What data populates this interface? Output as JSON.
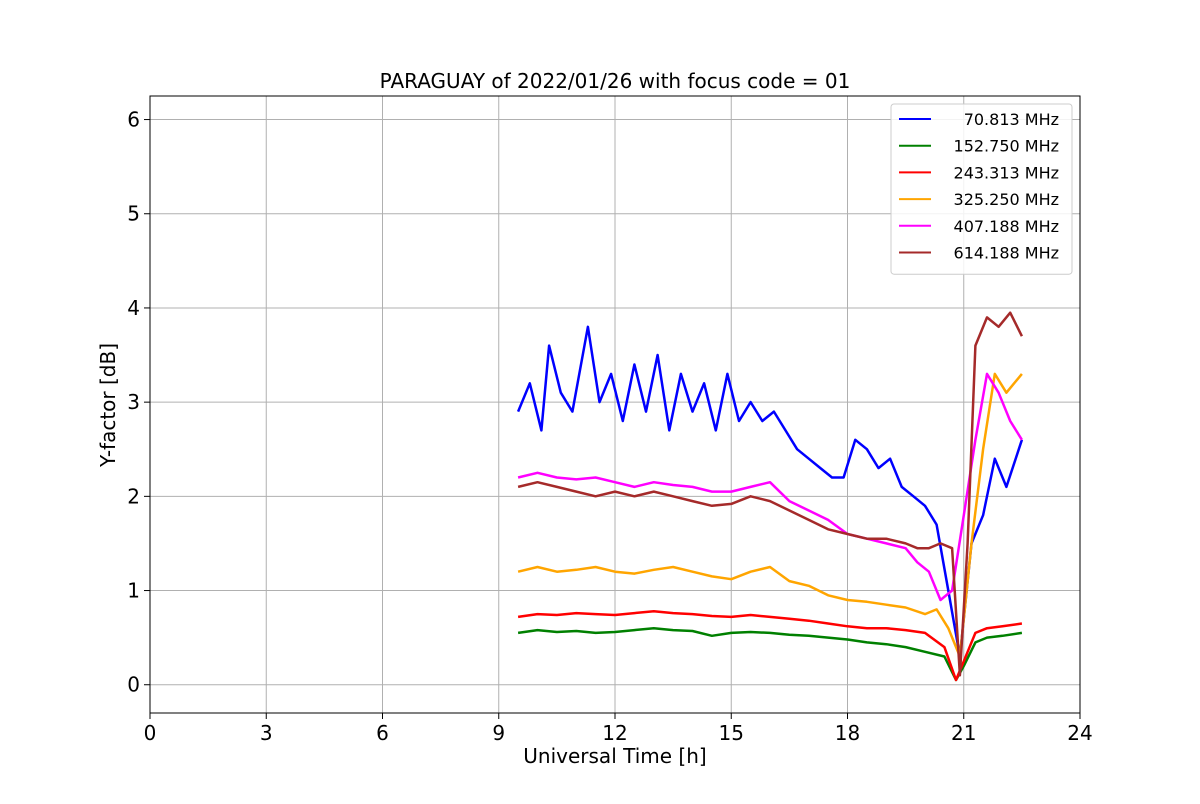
{
  "chart_data": {
    "type": "line",
    "title": "PARAGUAY of 2022/01/26 with focus code = 01",
    "xlabel": "Universal Time [h]",
    "ylabel": "Y-factor [dB]",
    "xlim": [
      0,
      24
    ],
    "ylim": [
      -0.3,
      6.25
    ],
    "xticks": [
      0,
      3,
      6,
      9,
      12,
      15,
      18,
      21,
      24
    ],
    "yticks": [
      0,
      1,
      2,
      3,
      4,
      5,
      6
    ],
    "grid": true,
    "legend_position": "top-right",
    "series": [
      {
        "name": "70.813 MHz",
        "color": "#0000ff",
        "x": [
          9.5,
          9.8,
          10.1,
          10.3,
          10.6,
          10.9,
          11.3,
          11.6,
          11.9,
          12.2,
          12.5,
          12.8,
          13.1,
          13.4,
          13.7,
          14.0,
          14.3,
          14.6,
          14.9,
          15.2,
          15.5,
          15.8,
          16.1,
          16.4,
          16.7,
          17.0,
          17.3,
          17.6,
          17.9,
          18.2,
          18.5,
          18.8,
          19.1,
          19.4,
          19.7,
          20.0,
          20.3,
          20.6,
          20.9,
          21.2,
          21.5,
          21.8,
          22.1,
          22.5
        ],
        "values": [
          2.9,
          3.2,
          2.7,
          3.6,
          3.1,
          2.9,
          3.8,
          3.0,
          3.3,
          2.8,
          3.4,
          2.9,
          3.5,
          2.7,
          3.3,
          2.9,
          3.2,
          2.7,
          3.3,
          2.8,
          3.0,
          2.8,
          2.9,
          2.7,
          2.5,
          2.4,
          2.3,
          2.2,
          2.2,
          2.6,
          2.5,
          2.3,
          2.4,
          2.1,
          2.0,
          1.9,
          1.7,
          1.0,
          0.3,
          1.5,
          1.8,
          2.4,
          2.1,
          2.6
        ]
      },
      {
        "name": "152.750 MHz",
        "color": "#008000",
        "x": [
          9.5,
          10.0,
          10.5,
          11.0,
          11.5,
          12.0,
          12.5,
          13.0,
          13.5,
          14.0,
          14.5,
          15.0,
          15.5,
          16.0,
          16.5,
          17.0,
          17.5,
          18.0,
          18.5,
          19.0,
          19.5,
          20.0,
          20.5,
          20.8,
          21.0,
          21.3,
          21.6,
          22.0,
          22.5
        ],
        "values": [
          0.55,
          0.58,
          0.56,
          0.57,
          0.55,
          0.56,
          0.58,
          0.6,
          0.58,
          0.57,
          0.52,
          0.55,
          0.56,
          0.55,
          0.53,
          0.52,
          0.5,
          0.48,
          0.45,
          0.43,
          0.4,
          0.35,
          0.3,
          0.05,
          0.2,
          0.45,
          0.5,
          0.52,
          0.55
        ]
      },
      {
        "name": "243.313 MHz",
        "color": "#ff0000",
        "x": [
          9.5,
          10.0,
          10.5,
          11.0,
          11.5,
          12.0,
          12.5,
          13.0,
          13.5,
          14.0,
          14.5,
          15.0,
          15.5,
          16.0,
          16.5,
          17.0,
          17.5,
          18.0,
          18.5,
          19.0,
          19.5,
          20.0,
          20.5,
          20.8,
          21.0,
          21.3,
          21.6,
          22.0,
          22.5
        ],
        "values": [
          0.72,
          0.75,
          0.74,
          0.76,
          0.75,
          0.74,
          0.76,
          0.78,
          0.76,
          0.75,
          0.73,
          0.72,
          0.74,
          0.72,
          0.7,
          0.68,
          0.65,
          0.62,
          0.6,
          0.6,
          0.58,
          0.55,
          0.4,
          0.05,
          0.25,
          0.55,
          0.6,
          0.62,
          0.65
        ]
      },
      {
        "name": "325.250 MHz",
        "color": "#ffa500",
        "x": [
          9.5,
          10.0,
          10.5,
          11.0,
          11.5,
          12.0,
          12.5,
          13.0,
          13.5,
          14.0,
          14.5,
          15.0,
          15.5,
          16.0,
          16.5,
          17.0,
          17.5,
          18.0,
          18.5,
          19.0,
          19.5,
          20.0,
          20.3,
          20.6,
          20.9,
          21.2,
          21.5,
          21.8,
          22.1,
          22.5
        ],
        "values": [
          1.2,
          1.25,
          1.2,
          1.22,
          1.25,
          1.2,
          1.18,
          1.22,
          1.25,
          1.2,
          1.15,
          1.12,
          1.2,
          1.25,
          1.1,
          1.05,
          0.95,
          0.9,
          0.88,
          0.85,
          0.82,
          0.75,
          0.8,
          0.6,
          0.3,
          1.5,
          2.5,
          3.3,
          3.1,
          3.3
        ]
      },
      {
        "name": "407.188 MHz",
        "color": "#ff00ff",
        "x": [
          9.5,
          10.0,
          10.5,
          11.0,
          11.5,
          12.0,
          12.5,
          13.0,
          13.5,
          14.0,
          14.5,
          15.0,
          15.5,
          16.0,
          16.5,
          17.0,
          17.5,
          18.0,
          18.5,
          19.0,
          19.5,
          19.8,
          20.1,
          20.4,
          20.7,
          21.0,
          21.3,
          21.6,
          21.9,
          22.2,
          22.5
        ],
        "values": [
          2.2,
          2.25,
          2.2,
          2.18,
          2.2,
          2.15,
          2.1,
          2.15,
          2.12,
          2.1,
          2.05,
          2.05,
          2.1,
          2.15,
          1.95,
          1.85,
          1.75,
          1.6,
          1.55,
          1.5,
          1.45,
          1.3,
          1.2,
          0.9,
          1.0,
          1.8,
          2.6,
          3.3,
          3.1,
          2.8,
          2.6
        ]
      },
      {
        "name": "614.188 MHz",
        "color": "#a52a2a",
        "x": [
          9.5,
          10.0,
          10.5,
          11.0,
          11.5,
          12.0,
          12.5,
          13.0,
          13.5,
          14.0,
          14.5,
          15.0,
          15.5,
          16.0,
          16.5,
          17.0,
          17.5,
          18.0,
          18.5,
          19.0,
          19.5,
          19.8,
          20.1,
          20.4,
          20.7,
          20.9,
          21.1,
          21.3,
          21.6,
          21.9,
          22.2,
          22.5
        ],
        "values": [
          2.1,
          2.15,
          2.1,
          2.05,
          2.0,
          2.05,
          2.0,
          2.05,
          2.0,
          1.95,
          1.9,
          1.92,
          2.0,
          1.95,
          1.85,
          1.75,
          1.65,
          1.6,
          1.55,
          1.55,
          1.5,
          1.45,
          1.45,
          1.5,
          1.45,
          0.1,
          1.5,
          3.6,
          3.9,
          3.8,
          3.95,
          3.7
        ]
      }
    ]
  }
}
